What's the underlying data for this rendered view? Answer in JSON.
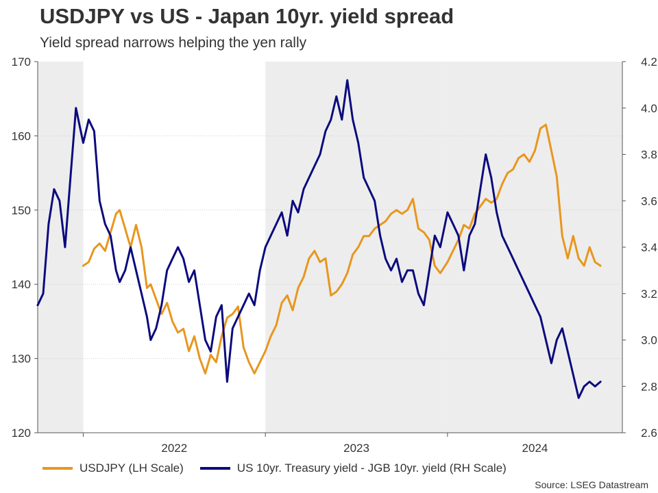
{
  "chart_data": {
    "type": "line",
    "title": "USDJPY vs US - Japan 10yr. yield spread",
    "subtitle": "Yield spread narrows helping the yen rally",
    "source": "Source: LSEG Datastream",
    "x_start": 2021.75,
    "x_end": 2024.96,
    "xticks": [
      2022,
      2023,
      2024
    ],
    "xtick_labels": [
      "2022",
      "2023",
      "2024"
    ],
    "shaded_ranges": [
      [
        2021.75,
        2022.0
      ],
      [
        2023.0,
        2024.0
      ],
      [
        2024.0,
        2024.96
      ]
    ],
    "left_axis": {
      "label": "USDJPY (LH Scale)",
      "ylim": [
        120,
        170
      ],
      "ticks": [
        120,
        130,
        140,
        150,
        160,
        170
      ]
    },
    "right_axis": {
      "label": "US 10yr. Treasury yield - JGB 10yr. yield (RH Scale)",
      "ylim": [
        2.6,
        4.2
      ],
      "ticks": [
        2.6,
        2.8,
        3.0,
        3.2,
        3.4,
        3.6,
        3.8,
        4.0,
        4.2
      ],
      "tick_labels": [
        "2.6",
        "2.8",
        "3.0",
        "3.2",
        "3.4",
        "3.6",
        "3.8",
        "4.0",
        "4.2"
      ]
    },
    "series": [
      {
        "name": "USDJPY (LH Scale)",
        "axis": "left",
        "color": "#E8961E",
        "x": [
          2022.0,
          2022.03,
          2022.06,
          2022.09,
          2022.12,
          2022.15,
          2022.18,
          2022.2,
          2022.23,
          2022.26,
          2022.29,
          2022.32,
          2022.35,
          2022.37,
          2022.4,
          2022.43,
          2022.46,
          2022.49,
          2022.52,
          2022.55,
          2022.58,
          2022.61,
          2022.64,
          2022.67,
          2022.7,
          2022.73,
          2022.76,
          2022.79,
          2022.82,
          2022.85,
          2022.88,
          2022.91,
          2022.94,
          2022.97,
          2023.0,
          2023.03,
          2023.06,
          2023.09,
          2023.12,
          2023.15,
          2023.18,
          2023.21,
          2023.24,
          2023.27,
          2023.3,
          2023.33,
          2023.36,
          2023.39,
          2023.42,
          2023.45,
          2023.48,
          2023.51,
          2023.54,
          2023.57,
          2023.6,
          2023.63,
          2023.66,
          2023.69,
          2023.72,
          2023.75,
          2023.78,
          2023.81,
          2023.84,
          2023.87,
          2023.9,
          2023.93,
          2023.96,
          2024.0,
          2024.03,
          2024.06,
          2024.09,
          2024.12,
          2024.15,
          2024.18,
          2024.21,
          2024.24,
          2024.27,
          2024.3,
          2024.33,
          2024.36,
          2024.39,
          2024.42,
          2024.45,
          2024.48,
          2024.51,
          2024.54,
          2024.57,
          2024.6,
          2024.63,
          2024.66,
          2024.69,
          2024.72,
          2024.75,
          2024.78,
          2024.81,
          2024.84
        ],
        "values": [
          142.5,
          143.0,
          144.8,
          145.5,
          144.5,
          147.0,
          149.5,
          150.0,
          147.5,
          145.0,
          148.0,
          145.0,
          139.5,
          140.0,
          138.0,
          136.0,
          137.5,
          135.0,
          133.5,
          134.0,
          131.0,
          133.0,
          130.0,
          128.0,
          130.5,
          129.5,
          133.0,
          135.5,
          136.0,
          137.0,
          131.5,
          129.5,
          128.0,
          129.5,
          131.0,
          133.0,
          134.5,
          137.5,
          138.5,
          136.5,
          139.5,
          141.0,
          143.5,
          144.5,
          143.0,
          143.5,
          138.5,
          139.0,
          140.0,
          141.5,
          144.0,
          145.0,
          146.5,
          146.5,
          147.5,
          148.0,
          148.5,
          149.5,
          150.0,
          149.5,
          150.0,
          151.5,
          147.5,
          147.0,
          146.0,
          142.5,
          141.5,
          143.0,
          144.5,
          146.0,
          148.0,
          147.5,
          149.5,
          150.5,
          151.5,
          151.0,
          151.5,
          153.5,
          155.0,
          155.5,
          157.0,
          157.5,
          156.5,
          158.0,
          161.0,
          161.5,
          158.0,
          154.5,
          146.5,
          143.5,
          146.5,
          143.5,
          142.5,
          145.0,
          143.0,
          142.5
        ]
      },
      {
        "name": "US 10yr. Treasury yield - JGB 10yr. yield (RH Scale)",
        "axis": "right",
        "color": "#0B0A7D",
        "x": [
          2021.75,
          2021.78,
          2021.81,
          2021.84,
          2021.87,
          2021.9,
          2021.93,
          2021.96,
          2022.0,
          2022.03,
          2022.06,
          2022.09,
          2022.12,
          2022.15,
          2022.18,
          2022.2,
          2022.23,
          2022.26,
          2022.29,
          2022.32,
          2022.35,
          2022.37,
          2022.4,
          2022.43,
          2022.46,
          2022.49,
          2022.52,
          2022.55,
          2022.58,
          2022.61,
          2022.64,
          2022.67,
          2022.7,
          2022.73,
          2022.76,
          2022.79,
          2022.82,
          2022.85,
          2022.88,
          2022.91,
          2022.94,
          2022.97,
          2023.0,
          2023.03,
          2023.06,
          2023.09,
          2023.12,
          2023.15,
          2023.18,
          2023.21,
          2023.24,
          2023.27,
          2023.3,
          2023.33,
          2023.36,
          2023.39,
          2023.42,
          2023.45,
          2023.48,
          2023.51,
          2023.54,
          2023.57,
          2023.6,
          2023.63,
          2023.66,
          2023.69,
          2023.72,
          2023.75,
          2023.78,
          2023.81,
          2023.84,
          2023.87,
          2023.9,
          2023.93,
          2023.96,
          2024.0,
          2024.03,
          2024.06,
          2024.09,
          2024.12,
          2024.15,
          2024.18,
          2024.21,
          2024.24,
          2024.27,
          2024.3,
          2024.33,
          2024.36,
          2024.39,
          2024.42,
          2024.45,
          2024.48,
          2024.51,
          2024.54,
          2024.57,
          2024.6,
          2024.63,
          2024.66,
          2024.69,
          2024.72,
          2024.75,
          2024.78,
          2024.81,
          2024.84
        ],
        "values": [
          3.15,
          3.2,
          3.5,
          3.65,
          3.6,
          3.4,
          3.7,
          4.0,
          3.85,
          3.95,
          3.9,
          3.6,
          3.5,
          3.45,
          3.3,
          3.25,
          3.3,
          3.4,
          3.3,
          3.2,
          3.1,
          3.0,
          3.05,
          3.15,
          3.3,
          3.35,
          3.4,
          3.35,
          3.25,
          3.3,
          3.15,
          3.0,
          2.95,
          3.1,
          3.15,
          2.82,
          3.05,
          3.1,
          3.15,
          3.2,
          3.15,
          3.3,
          3.4,
          3.45,
          3.5,
          3.55,
          3.45,
          3.6,
          3.55,
          3.65,
          3.7,
          3.75,
          3.8,
          3.9,
          3.95,
          4.05,
          3.95,
          4.12,
          3.95,
          3.85,
          3.7,
          3.65,
          3.6,
          3.45,
          3.35,
          3.3,
          3.35,
          3.25,
          3.3,
          3.3,
          3.2,
          3.15,
          3.3,
          3.45,
          3.4,
          3.55,
          3.5,
          3.45,
          3.3,
          3.45,
          3.5,
          3.65,
          3.8,
          3.7,
          3.55,
          3.45,
          3.4,
          3.35,
          3.3,
          3.25,
          3.2,
          3.15,
          3.1,
          3.0,
          2.9,
          3.0,
          3.05,
          2.95,
          2.85,
          2.75,
          2.8,
          2.82,
          2.8,
          2.82
        ]
      }
    ]
  }
}
